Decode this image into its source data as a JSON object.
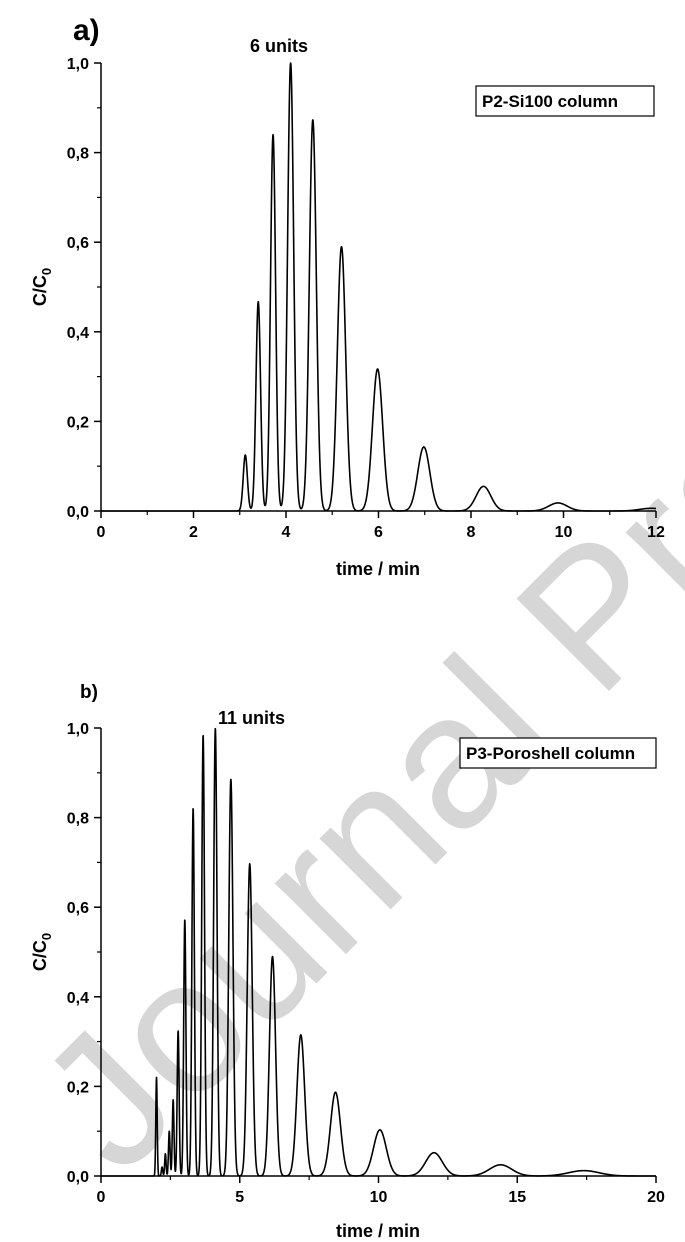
{
  "watermark": "Journal Pre-proof",
  "chart_data": [
    {
      "type": "line",
      "panel_label": "a)",
      "annotation": "6 units",
      "legend": "P2-Si100 column",
      "legend_placement": "top-right",
      "xlabel": "time / min",
      "ylabel_main": "C/C",
      "ylabel_sub": "0",
      "xlim": [
        0,
        12
      ],
      "ylim": [
        0,
        1.0
      ],
      "xticks": [
        0,
        2,
        4,
        6,
        8,
        10,
        12
      ],
      "xtick_labels": [
        "0",
        "2",
        "4",
        "6",
        "8",
        "10",
        "12"
      ],
      "yticks": [
        0,
        0.2,
        0.4,
        0.6,
        0.8,
        1.0
      ],
      "ytick_labels": [
        "0,0",
        "0,2",
        "0,4",
        "0,6",
        "0,8",
        "1,0"
      ],
      "grid": false,
      "peaks": [
        {
          "t": 3.12,
          "h": 0.125,
          "w": 0.045
        },
        {
          "t": 3.4,
          "h": 0.467,
          "w": 0.05
        },
        {
          "t": 3.72,
          "h": 0.84,
          "w": 0.055
        },
        {
          "t": 4.1,
          "h": 1.0,
          "w": 0.065
        },
        {
          "t": 4.58,
          "h": 0.873,
          "w": 0.075
        },
        {
          "t": 5.2,
          "h": 0.59,
          "w": 0.09
        },
        {
          "t": 5.98,
          "h": 0.317,
          "w": 0.11
        },
        {
          "t": 6.98,
          "h": 0.143,
          "w": 0.13
        },
        {
          "t": 8.27,
          "h": 0.055,
          "w": 0.16
        },
        {
          "t": 9.88,
          "h": 0.018,
          "w": 0.2
        },
        {
          "t": 11.9,
          "h": 0.006,
          "w": 0.25
        }
      ]
    },
    {
      "type": "line",
      "panel_label": "b)",
      "annotation": "11 units",
      "legend": "P3-Poroshell column",
      "legend_placement": "top-right",
      "xlabel": "time / min",
      "ylabel_main": "C/C",
      "ylabel_sub": "0",
      "xlim": [
        0,
        20
      ],
      "ylim": [
        0,
        1.0
      ],
      "xticks": [
        0,
        5,
        10,
        15,
        20
      ],
      "xtick_labels": [
        "0",
        "5",
        "10",
        "15",
        "20"
      ],
      "yticks": [
        0,
        0.2,
        0.4,
        0.6,
        0.8,
        1.0
      ],
      "ytick_labels": [
        "0,0",
        "0,2",
        "0,4",
        "0,6",
        "0,8",
        "1,0"
      ],
      "grid": false,
      "peaks": [
        {
          "t": 2.0,
          "h": 0.22,
          "w": 0.025
        },
        {
          "t": 2.2,
          "h": 0.02,
          "w": 0.025
        },
        {
          "t": 2.32,
          "h": 0.05,
          "w": 0.025
        },
        {
          "t": 2.46,
          "h": 0.1,
          "w": 0.028
        },
        {
          "t": 2.6,
          "h": 0.17,
          "w": 0.03
        },
        {
          "t": 2.78,
          "h": 0.325,
          "w": 0.035
        },
        {
          "t": 3.02,
          "h": 0.573,
          "w": 0.04
        },
        {
          "t": 3.32,
          "h": 0.822,
          "w": 0.045
        },
        {
          "t": 3.68,
          "h": 0.985,
          "w": 0.05
        },
        {
          "t": 4.12,
          "h": 1.0,
          "w": 0.06
        },
        {
          "t": 4.68,
          "h": 0.886,
          "w": 0.075
        },
        {
          "t": 5.36,
          "h": 0.697,
          "w": 0.09
        },
        {
          "t": 6.18,
          "h": 0.49,
          "w": 0.11
        },
        {
          "t": 7.2,
          "h": 0.315,
          "w": 0.14
        },
        {
          "t": 8.45,
          "h": 0.187,
          "w": 0.18
        },
        {
          "t": 10.05,
          "h": 0.103,
          "w": 0.23
        },
        {
          "t": 12.0,
          "h": 0.052,
          "w": 0.3
        },
        {
          "t": 14.4,
          "h": 0.025,
          "w": 0.4
        },
        {
          "t": 17.4,
          "h": 0.012,
          "w": 0.55
        }
      ]
    }
  ]
}
